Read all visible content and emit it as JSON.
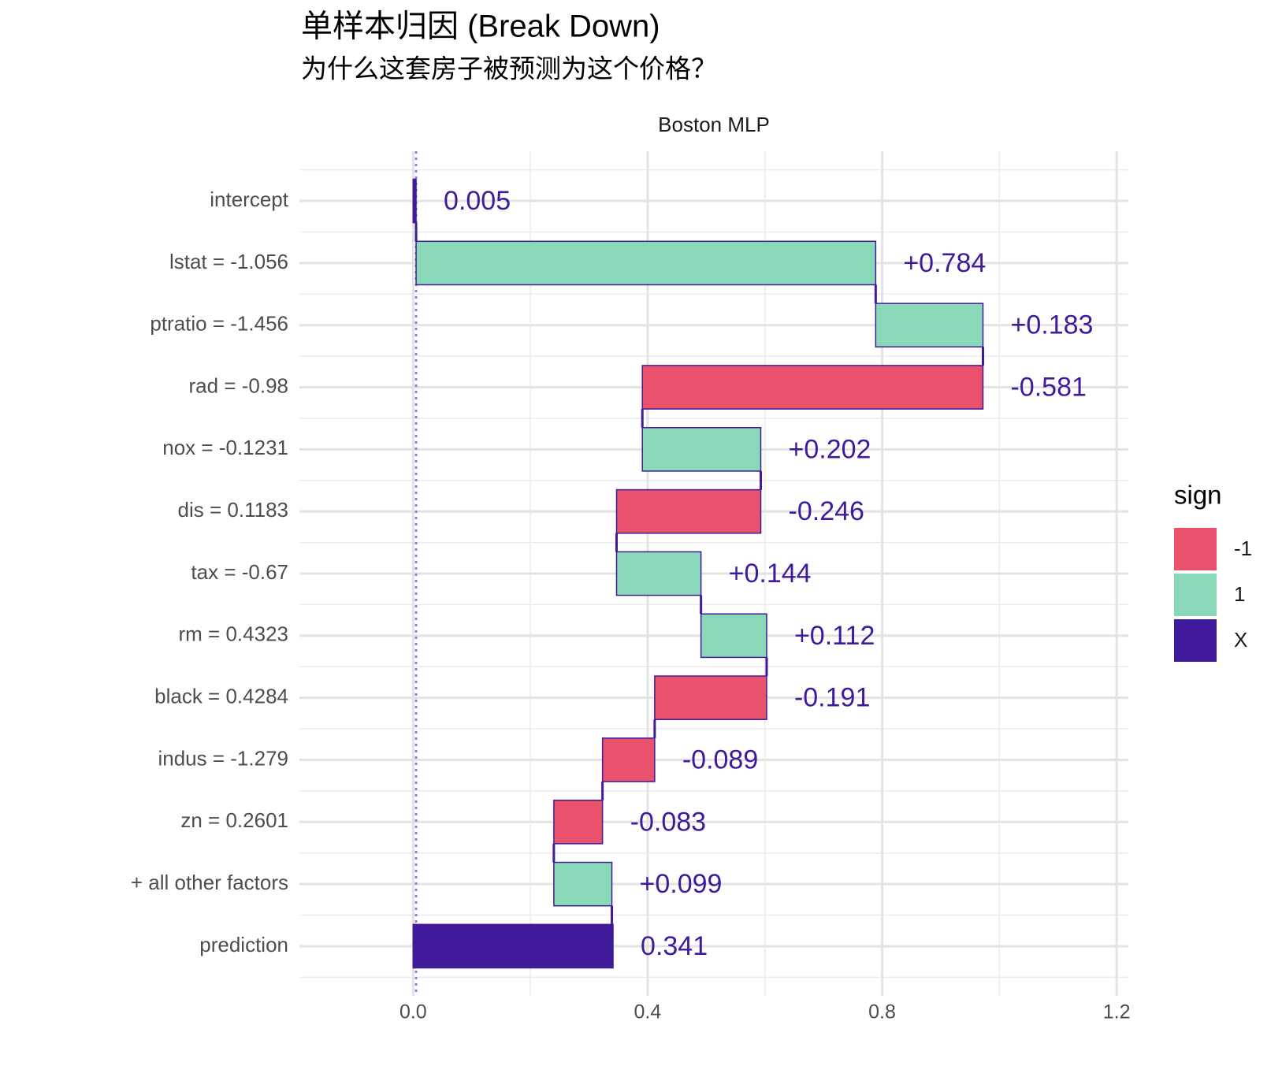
{
  "chart_data": {
    "type": "waterfall",
    "title": "单样本归因 (Break Down)",
    "subtitle": "为什么这套房子被预测为这个价格？",
    "facet_label": "Boston MLP",
    "categories": [
      "intercept",
      "lstat = -1.056",
      "ptratio = -1.456",
      "rad = -0.98",
      "nox = -0.1231",
      "dis = 0.1183",
      "tax = -0.67",
      "rm = 0.4323",
      "black = 0.4284",
      "indus = -1.279",
      "zn = 0.2601",
      "+ all other factors",
      "prediction"
    ],
    "values": [
      0.005,
      0.784,
      0.183,
      -0.581,
      0.202,
      -0.246,
      0.144,
      0.112,
      -0.191,
      -0.089,
      -0.083,
      0.099,
      0.341
    ],
    "value_labels": [
      "0.005",
      "+0.784",
      "+0.183",
      "-0.581",
      "+0.202",
      "-0.246",
      "+0.144",
      "+0.112",
      "-0.191",
      "-0.089",
      "-0.083",
      "+0.099",
      "0.341"
    ],
    "signs": [
      "X",
      "1",
      "1",
      "-1",
      "1",
      "-1",
      "1",
      "1",
      "-1",
      "-1",
      "-1",
      "1",
      "X"
    ],
    "legend_title": "sign",
    "legend": [
      {
        "name": "-1",
        "color": "#e9516c"
      },
      {
        "name": "1",
        "color": "#89d9b8"
      },
      {
        "name": "X",
        "color": "#3f1a9b"
      }
    ],
    "label_color": "#3f1a9b",
    "xlim": [
      -0.194,
      1.22
    ],
    "xticks": [
      {
        "value": 0,
        "label": "0.0"
      },
      0.4,
      0.8,
      1.2
    ],
    "grid": true
  }
}
